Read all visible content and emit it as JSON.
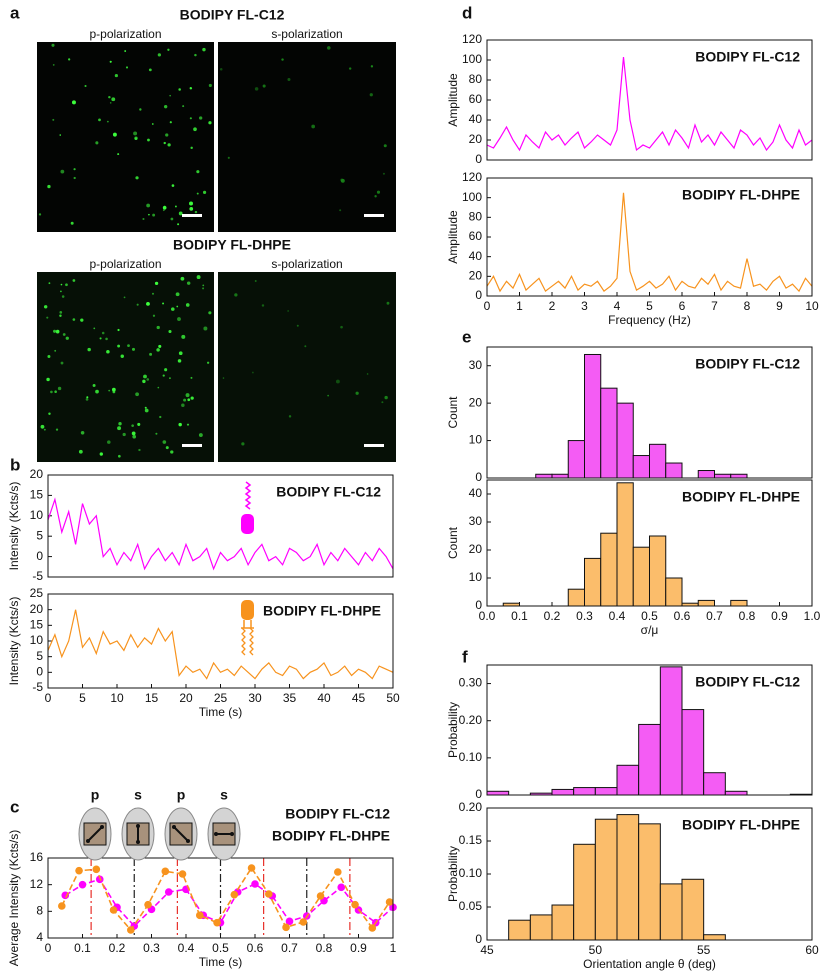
{
  "images": {
    "panel": "a",
    "groups": [
      {
        "title": "BODIPY FL-C12",
        "color": "#ff00ff",
        "labels": [
          "p-polarization",
          "s-polarization"
        ]
      },
      {
        "title": "BODIPY FL-DHPE",
        "color": "#f7931e",
        "labels": [
          "p-polarization",
          "s-polarization"
        ]
      }
    ]
  },
  "chart_data": [
    {
      "type": "line",
      "panel": "b",
      "ylabel": "Intensity (Kcts/s)",
      "x": [
        0,
        1,
        2,
        3,
        4,
        5,
        6,
        7,
        8,
        9,
        10,
        11,
        12,
        13,
        14,
        15,
        16,
        17,
        18,
        19,
        20,
        21,
        22,
        23,
        24,
        25,
        26,
        27,
        28,
        29,
        30,
        31,
        32,
        33,
        34,
        35,
        36,
        37,
        38,
        39,
        40,
        41,
        42,
        43,
        44,
        45,
        46,
        47,
        48,
        49,
        50
      ],
      "series": [
        {
          "name": "BODIPY FL-C12",
          "color": "#ff00ff",
          "values": [
            9,
            14,
            6,
            11,
            3,
            13,
            8,
            10,
            0,
            2,
            -2,
            1,
            -1,
            3,
            -3,
            0,
            2,
            -1,
            1,
            -2,
            3,
            -1,
            0,
            2,
            -3,
            1,
            -1,
            0,
            2,
            -2,
            1,
            3,
            -1,
            0,
            -2,
            2,
            1,
            -1,
            0,
            3,
            -2,
            1,
            -1,
            2,
            0,
            -2,
            1,
            -1,
            2,
            0,
            -3
          ]
        }
      ],
      "xlim": [
        0,
        50
      ],
      "ylim": [
        -5,
        20
      ],
      "yticks": [
        -5,
        0,
        5,
        10,
        15,
        20
      ]
    },
    {
      "type": "line",
      "ylabel": "Intensity (Kcts/s)",
      "xlabel": "Time (s)",
      "x": [
        0,
        1,
        2,
        3,
        4,
        5,
        6,
        7,
        8,
        9,
        10,
        11,
        12,
        13,
        14,
        15,
        16,
        17,
        18,
        19,
        20,
        21,
        22,
        23,
        24,
        25,
        26,
        27,
        28,
        29,
        30,
        31,
        32,
        33,
        34,
        35,
        36,
        37,
        38,
        39,
        40,
        41,
        42,
        43,
        44,
        45,
        46,
        47,
        48,
        49,
        50
      ],
      "series": [
        {
          "name": "BODIPY FL-DHPE",
          "color": "#f7931e",
          "values": [
            7,
            12,
            5,
            10,
            20,
            8,
            11,
            6,
            13,
            9,
            10,
            7,
            12,
            8,
            11,
            9,
            14,
            10,
            13,
            -1,
            2,
            0,
            1,
            -2,
            3,
            0,
            1,
            -1,
            2,
            0,
            -2,
            1,
            3,
            0,
            -1,
            2,
            1,
            -2,
            0,
            1,
            3,
            -1,
            0,
            2,
            -1,
            1,
            0,
            -2,
            2,
            1,
            0
          ]
        }
      ],
      "xlim": [
        0,
        50
      ],
      "xticks": [
        0,
        5,
        10,
        15,
        20,
        25,
        30,
        35,
        40,
        45,
        50
      ],
      "ylim": [
        -5,
        25
      ],
      "yticks": [
        -5,
        0,
        5,
        10,
        15,
        20,
        25
      ]
    },
    {
      "type": "line-markers",
      "panel": "c",
      "icons": [
        "p",
        "s",
        "p",
        "s"
      ],
      "ylabel": "Average Intensity (Kcts/s)",
      "xlabel": "Time (s)",
      "series": [
        {
          "name": "BODIPY FL-C12",
          "color": "#ff00ff",
          "x": [
            0.05,
            0.1,
            0.15,
            0.2,
            0.25,
            0.3,
            0.35,
            0.4,
            0.45,
            0.5,
            0.55,
            0.6,
            0.65,
            0.7,
            0.75,
            0.8,
            0.85,
            0.9,
            0.95,
            1
          ],
          "values": [
            10.4,
            12,
            12.8,
            8.6,
            5.8,
            8.3,
            10.9,
            11.3,
            7.4,
            6.3,
            10.9,
            12.1,
            10.3,
            6.5,
            7.3,
            9.6,
            11.6,
            8.2,
            6.3,
            8.6
          ]
        },
        {
          "name": "BODIPY FL-DHPE",
          "color": "#f7931e",
          "x": [
            0.04,
            0.09,
            0.14,
            0.19,
            0.24,
            0.29,
            0.34,
            0.39,
            0.44,
            0.49,
            0.54,
            0.59,
            0.64,
            0.69,
            0.74,
            0.79,
            0.84,
            0.89,
            0.94,
            0.99
          ],
          "values": [
            8.8,
            14.1,
            14.3,
            8.2,
            5.2,
            9,
            14,
            13.6,
            7.4,
            6.3,
            10.5,
            14.5,
            10.6,
            5.6,
            6.4,
            10.3,
            13.9,
            9,
            5.5,
            9.4
          ]
        }
      ],
      "vlines": [
        {
          "x": 0.125,
          "color": "#e8302a"
        },
        {
          "x": 0.25,
          "color": "#222222"
        },
        {
          "x": 0.375,
          "color": "#e8302a"
        },
        {
          "x": 0.5,
          "color": "#222222"
        },
        {
          "x": 0.625,
          "color": "#e8302a"
        },
        {
          "x": 0.75,
          "color": "#222222"
        },
        {
          "x": 0.875,
          "color": "#e8302a"
        }
      ],
      "xlim": [
        0,
        1
      ],
      "xticks": [
        0,
        0.1,
        0.2,
        0.3,
        0.4,
        0.5,
        0.6,
        0.7,
        0.8,
        0.9,
        1
      ],
      "ylim": [
        4,
        16
      ],
      "yticks": [
        4,
        8,
        12,
        16
      ]
    },
    {
      "type": "line",
      "panel": "d",
      "ylabel": "Amplitude",
      "x": [
        0,
        0.2,
        0.4,
        0.6,
        0.8,
        1,
        1.2,
        1.4,
        1.6,
        1.8,
        2,
        2.2,
        2.4,
        2.6,
        2.8,
        3,
        3.2,
        3.4,
        3.6,
        3.8,
        4,
        4.2,
        4.4,
        4.6,
        4.8,
        5,
        5.2,
        5.4,
        5.6,
        5.8,
        6,
        6.2,
        6.4,
        6.6,
        6.8,
        7,
        7.2,
        7.4,
        7.6,
        7.8,
        8,
        8.2,
        8.4,
        8.6,
        8.8,
        9,
        9.2,
        9.4,
        9.6,
        9.8,
        10
      ],
      "series": [
        {
          "name": "BODIPY FL-C12",
          "color": "#ff00ff",
          "values": [
            15,
            12,
            22,
            33,
            20,
            10,
            25,
            18,
            12,
            28,
            20,
            25,
            15,
            22,
            28,
            12,
            18,
            25,
            20,
            15,
            30,
            103,
            40,
            10,
            15,
            12,
            20,
            28,
            15,
            30,
            22,
            12,
            35,
            18,
            25,
            15,
            28,
            20,
            12,
            30,
            25,
            15,
            22,
            10,
            18,
            35,
            20,
            12,
            30,
            15,
            20
          ]
        }
      ],
      "xlim": [
        0,
        10
      ],
      "ylim": [
        0,
        120
      ],
      "yticks": [
        0,
        20,
        40,
        60,
        80,
        100,
        120
      ]
    },
    {
      "type": "line",
      "ylabel": "Amplitude",
      "xlabel": "Frequency (Hz)",
      "x": [
        0,
        0.2,
        0.4,
        0.6,
        0.8,
        1,
        1.2,
        1.4,
        1.6,
        1.8,
        2,
        2.2,
        2.4,
        2.6,
        2.8,
        3,
        3.2,
        3.4,
        3.6,
        3.8,
        4,
        4.2,
        4.4,
        4.6,
        4.8,
        5,
        5.2,
        5.4,
        5.6,
        5.8,
        6,
        6.2,
        6.4,
        6.6,
        6.8,
        7,
        7.2,
        7.4,
        7.6,
        7.8,
        8,
        8.2,
        8.4,
        8.6,
        8.8,
        9,
        9.2,
        9.4,
        9.6,
        9.8,
        10
      ],
      "series": [
        {
          "name": "BODIPY FL-DHPE",
          "color": "#f7931e",
          "values": [
            10,
            20,
            5,
            15,
            8,
            22,
            6,
            12,
            18,
            5,
            10,
            15,
            8,
            20,
            6,
            12,
            10,
            15,
            5,
            10,
            18,
            105,
            25,
            6,
            10,
            15,
            8,
            12,
            20,
            6,
            15,
            10,
            8,
            18,
            12,
            22,
            6,
            15,
            10,
            8,
            38,
            10,
            12,
            6,
            15,
            20,
            8,
            12,
            5,
            18,
            10
          ]
        }
      ],
      "xlim": [
        0,
        10
      ],
      "xticks": [
        0,
        1,
        2,
        3,
        4,
        5,
        6,
        7,
        8,
        9,
        10
      ],
      "ylim": [
        0,
        120
      ],
      "yticks": [
        0,
        20,
        40,
        60,
        80,
        100,
        120
      ]
    },
    {
      "type": "histogram",
      "panel": "e",
      "ylabel": "Count",
      "bins": [
        0,
        0.05,
        0.1,
        0.15,
        0.2,
        0.25,
        0.3,
        0.35,
        0.4,
        0.45,
        0.5,
        0.55,
        0.6,
        0.65,
        0.7,
        0.75,
        0.8,
        0.85,
        0.9,
        0.95,
        1
      ],
      "series": [
        {
          "name": "BODIPY FL-C12",
          "color": "#f45cf4",
          "values": [
            0,
            0,
            0,
            1,
            1,
            10,
            33,
            24,
            20,
            6,
            9,
            4,
            0,
            2,
            1,
            1,
            0,
            0,
            0,
            0
          ]
        }
      ],
      "xlim": [
        0,
        1
      ],
      "ylim": [
        0,
        35
      ],
      "yticks": [
        0,
        10,
        20,
        30
      ]
    },
    {
      "type": "histogram",
      "ylabel": "Count",
      "xlabel": "σ/μ",
      "bins": [
        0,
        0.05,
        0.1,
        0.15,
        0.2,
        0.25,
        0.3,
        0.35,
        0.4,
        0.45,
        0.5,
        0.55,
        0.6,
        0.65,
        0.7,
        0.75,
        0.8,
        0.85,
        0.9,
        0.95,
        1
      ],
      "series": [
        {
          "name": "BODIPY FL-DHPE",
          "color": "#fbbd6b",
          "values": [
            0,
            1,
            0,
            0,
            0,
            6,
            17,
            26,
            44,
            21,
            25,
            10,
            1,
            2,
            0,
            2,
            0,
            0,
            0,
            0
          ]
        }
      ],
      "xlim": [
        0,
        1
      ],
      "xticks": [
        {
          "value": 0,
          "label": "0.0"
        },
        0.1,
        0.2,
        0.3,
        0.4,
        0.5,
        0.6,
        0.7,
        0.8,
        0.9,
        {
          "value": 1,
          "label": "1.0"
        }
      ],
      "ylim": [
        0,
        45
      ],
      "yticks": [
        0,
        10,
        20,
        30,
        40
      ]
    },
    {
      "type": "histogram",
      "panel": "f",
      "ylabel": "Probability",
      "bins": [
        45,
        46,
        47,
        48,
        49,
        50,
        51,
        52,
        53,
        54,
        55,
        56,
        57,
        58,
        59,
        60
      ],
      "series": [
        {
          "name": "BODIPY FL-C12",
          "color": "#f45cf4",
          "values": [
            0.01,
            0,
            0.005,
            0.015,
            0.02,
            0.02,
            0.08,
            0.19,
            0.345,
            0.23,
            0.06,
            0.01,
            0,
            0,
            0.002
          ]
        }
      ],
      "xlim": [
        45,
        60
      ],
      "ylim": [
        0,
        0.35
      ],
      "yticks": [
        0,
        {
          "value": 0.1,
          "label": "0.10"
        },
        {
          "value": 0.2,
          "label": "0.20"
        },
        {
          "value": 0.3,
          "label": "0.30"
        }
      ]
    },
    {
      "type": "histogram",
      "ylabel": "Probability",
      "xlabel": "Orientation angle θ (deg)",
      "bins": [
        45,
        46,
        47,
        48,
        49,
        50,
        51,
        52,
        53,
        54,
        55,
        56,
        57,
        58,
        59,
        60
      ],
      "series": [
        {
          "name": "BODIPY FL-DHPE",
          "color": "#fbbd6b",
          "values": [
            0,
            0.03,
            0.038,
            0.053,
            0.145,
            0.183,
            0.19,
            0.176,
            0.085,
            0.092,
            0.008,
            0,
            0,
            0,
            0
          ]
        }
      ],
      "xlim": [
        45,
        60
      ],
      "xticks": [
        45,
        50,
        55,
        60
      ],
      "ylim": [
        0,
        0.2
      ],
      "yticks": [
        0,
        0.05,
        {
          "value": 0.1,
          "label": "0.10"
        },
        0.15,
        {
          "value": 0.2,
          "label": "0.20"
        }
      ]
    }
  ]
}
